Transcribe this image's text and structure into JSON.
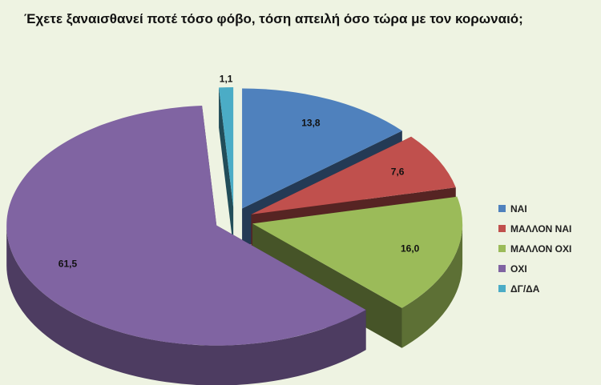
{
  "chart_data": {
    "type": "pie",
    "title": "Έχετε ξαναισθανεί ποτέ τόσο φόβο, τόση απειλή όσο τώρα με τον κορωναιό;",
    "categories": [
      "ΝΑΙ",
      "ΜΑΛΛΟΝ ΝΑΙ",
      "ΜΑΛΛΟΝ ΟΧΙ",
      "ΟΧΙ",
      "ΔΓ/ΔΑ"
    ],
    "values": [
      13.8,
      7.6,
      16.0,
      61.5,
      1.1
    ],
    "data_labels": [
      "13,8",
      "7,6",
      "16,0",
      "61,5",
      "1,1"
    ],
    "colors": [
      "#4f81bd",
      "#c0504d",
      "#9bbb59",
      "#8064a2",
      "#4bacc6"
    ],
    "legend_position": "right",
    "exploded": true,
    "three_d": true
  }
}
